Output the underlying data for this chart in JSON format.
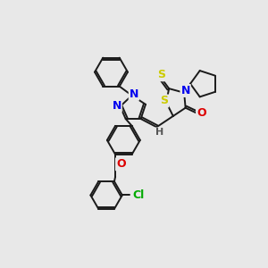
{
  "bg_color": "#e8e8e8",
  "bond_color": "#1a1a1a",
  "bond_width": 1.4,
  "figsize": [
    3.0,
    3.0
  ],
  "dpi": 100,
  "colors": {
    "N": "#0000ee",
    "S": "#cccc00",
    "O": "#dd0000",
    "Cl": "#00aa00",
    "H": "#555555",
    "C": "#1a1a1a"
  }
}
